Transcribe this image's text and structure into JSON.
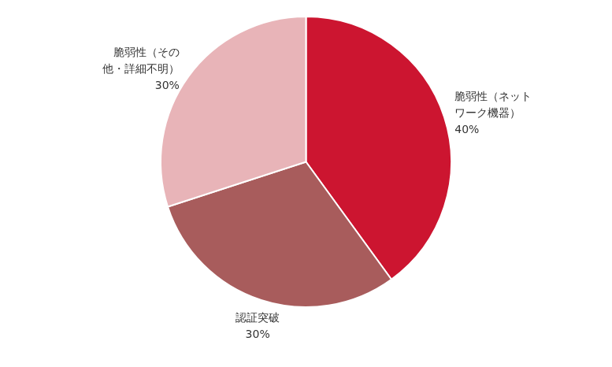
{
  "chart_data": {
    "type": "pie",
    "categories": [
      "脆弱性（ネット\nワーク機器）",
      "認証突破",
      "脆弱性（その\n他・詳細不明）"
    ],
    "values": [
      40,
      30,
      30
    ],
    "value_labels": [
      "40%",
      "30%",
      "30%"
    ],
    "colors": [
      "#CC1530",
      "#A85C5C",
      "#E8B4B8"
    ],
    "data_labels": true
  }
}
